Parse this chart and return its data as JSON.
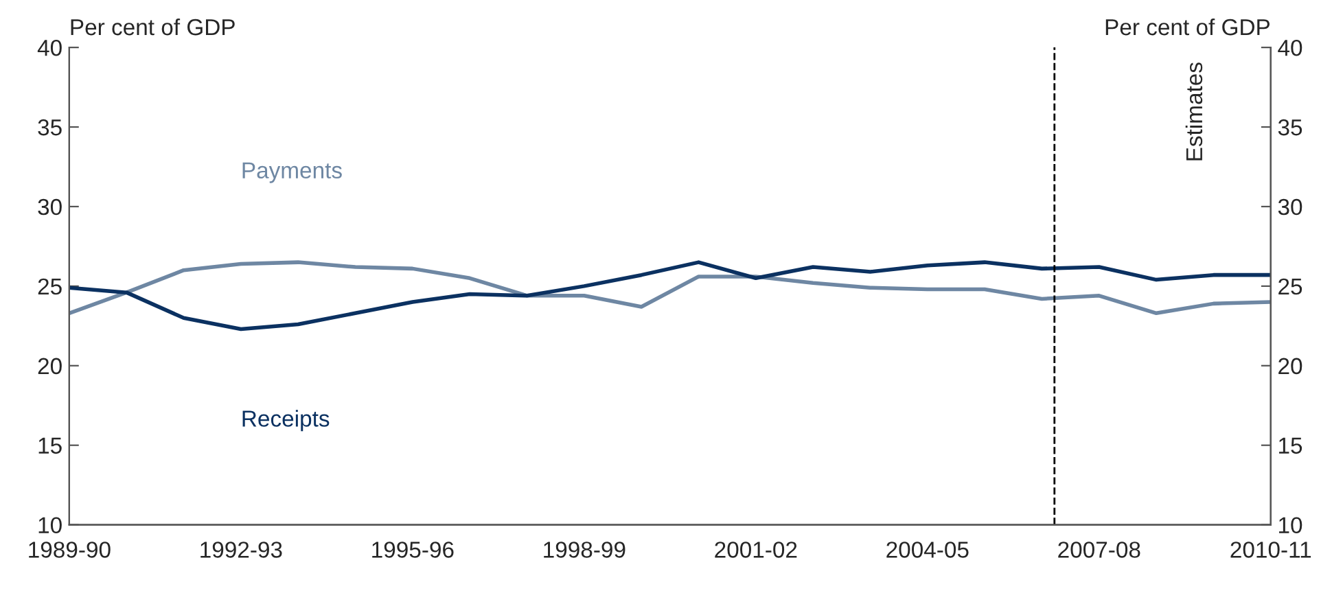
{
  "chart_data": {
    "type": "line",
    "categories": [
      "1989-90",
      null,
      null,
      "1992-93",
      null,
      null,
      "1995-96",
      null,
      null,
      "1998-99",
      null,
      null,
      "2001-02",
      null,
      null,
      "2004-05",
      null,
      null,
      "2007-08",
      null,
      null,
      "2010-11"
    ],
    "series": [
      {
        "name": "Payments",
        "color": "#6e87a3",
        "values": [
          23.3,
          24.6,
          26.0,
          26.4,
          26.5,
          26.2,
          26.1,
          25.5,
          24.4,
          24.4,
          23.7,
          25.6,
          25.6,
          25.2,
          24.9,
          24.8,
          24.8,
          24.2,
          24.4,
          23.3,
          23.9,
          24.0
        ]
      },
      {
        "name": "Receipts",
        "color": "#0b3161",
        "values": [
          24.9,
          24.6,
          23.0,
          22.3,
          22.6,
          23.3,
          24.0,
          24.5,
          24.4,
          25.0,
          25.7,
          26.5,
          25.5,
          26.2,
          25.9,
          26.3,
          26.5,
          26.1,
          26.2,
          25.4,
          25.7,
          25.7
        ]
      }
    ],
    "ylim": [
      10,
      40
    ],
    "yticks": [
      10,
      15,
      20,
      25,
      30,
      35,
      40
    ],
    "y2lim": [
      10,
      40
    ],
    "y2ticks": [
      10,
      15,
      20,
      25,
      30,
      35,
      40
    ],
    "ylabel": "Per cent of GDP",
    "y2label": "Per cent of GDP",
    "annotations": [
      "Estimates"
    ],
    "grid": false,
    "legend": false,
    "marker": "none",
    "line_style": "solid"
  }
}
